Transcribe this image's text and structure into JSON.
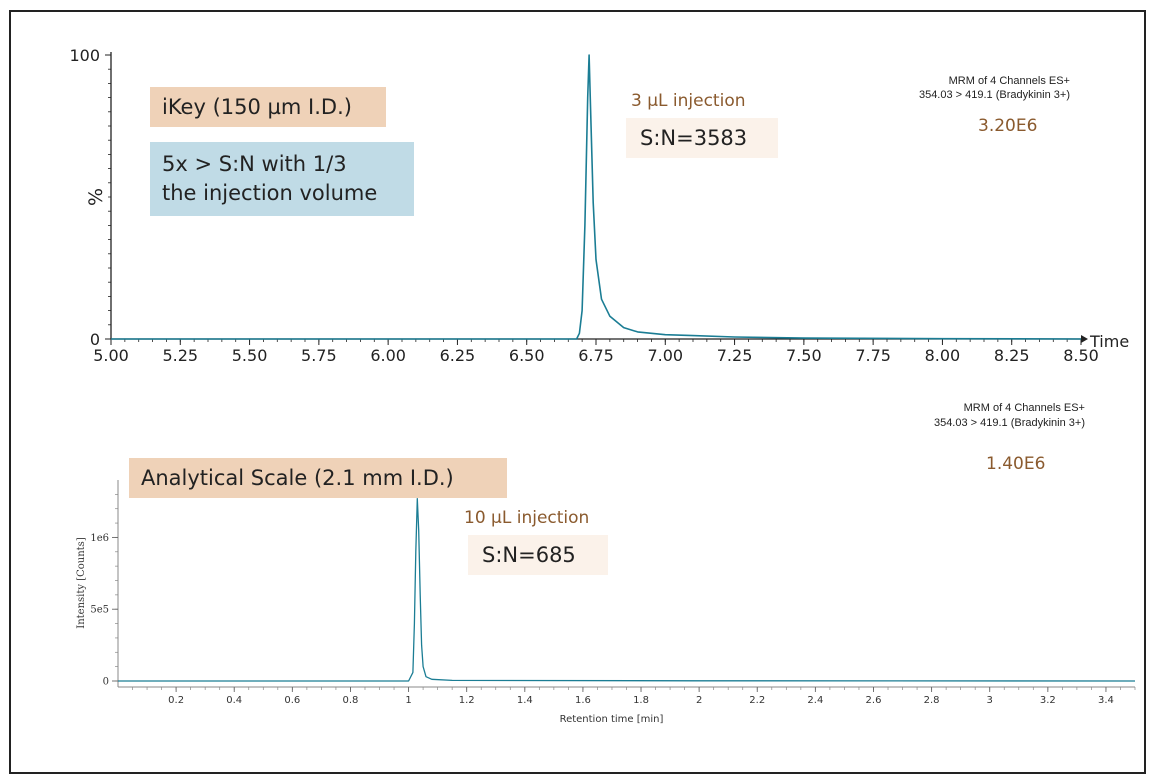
{
  "colors": {
    "trace": "#1b7d94",
    "brown_text": "#8a5a2e",
    "peach_box": "#efd2b8",
    "blue_box": "#c0dbe6",
    "cream_box": "#fbf2ea"
  },
  "annotations": {
    "top": {
      "label_ikey": "iKey (150 µm I.D.)",
      "label_sn_gain_1": "5x > S:N with 1/3",
      "label_sn_gain_2": "the injection volume",
      "injection": "3 µL injection",
      "sn": "S:N=3583",
      "mrm_line1": "MRM of 4 Channels ES+",
      "mrm_line2": "354.03 > 419.1 (Bradykinin 3+)",
      "intensity": "3.20E6"
    },
    "bottom": {
      "label_scale": "Analytical Scale (2.1 mm I.D.)",
      "injection": "10 µL injection",
      "sn": "S:N=685",
      "mrm_line1": "MRM of 4 Channels ES+",
      "mrm_line2": "354.03 > 419.1 (Bradykinin 3+)",
      "intensity": "1.40E6"
    }
  },
  "chart_data": [
    {
      "type": "line",
      "xlabel": "Time",
      "ylabel": "%",
      "xlim": [
        5.0,
        8.5
      ],
      "ylim": [
        0,
        100
      ],
      "x_ticks": [
        "5.00",
        "5.25",
        "5.50",
        "5.75",
        "6.00",
        "6.25",
        "6.50",
        "6.75",
        "7.00",
        "7.25",
        "7.50",
        "7.75",
        "8.00",
        "8.25",
        "8.50"
      ],
      "y_ticks": [
        "0",
        "100"
      ],
      "series": [
        {
          "x": [
            5.0,
            6.5,
            6.68,
            6.69,
            6.7,
            6.71,
            6.72,
            6.725,
            6.73,
            6.74,
            6.75,
            6.77,
            6.8,
            6.85,
            6.9,
            7.0,
            7.1,
            7.25,
            7.5,
            8.0,
            8.5
          ],
          "y": [
            0,
            0,
            0,
            2,
            10,
            40,
            85,
            100,
            82,
            48,
            28,
            14,
            8,
            4,
            2.5,
            1.5,
            1.2,
            0.7,
            0.3,
            0.1,
            0
          ]
        }
      ]
    },
    {
      "type": "line",
      "xlabel": "Retention time [min]",
      "ylabel": "Intensity [Counts]",
      "xlim": [
        0,
        3.5
      ],
      "ylim": [
        0,
        1400000
      ],
      "x_ticks": [
        "0.2",
        "0.4",
        "0.6",
        "0.8",
        "1",
        "1.2",
        "1.4",
        "1.6",
        "1.8",
        "2",
        "2.2",
        "2.4",
        "2.6",
        "2.8",
        "3",
        "3.2",
        "3.4"
      ],
      "y_ticks": [
        "0",
        "5e5",
        "1e6"
      ],
      "series": [
        {
          "x": [
            0,
            1.0,
            1.015,
            1.02,
            1.025,
            1.03,
            1.035,
            1.04,
            1.045,
            1.05,
            1.06,
            1.08,
            1.15,
            2.0,
            3.5
          ],
          "y": [
            0,
            0,
            60000,
            400000,
            900000,
            1270000,
            1050000,
            600000,
            250000,
            100000,
            30000,
            12000,
            4000,
            1500,
            0
          ]
        }
      ]
    }
  ]
}
